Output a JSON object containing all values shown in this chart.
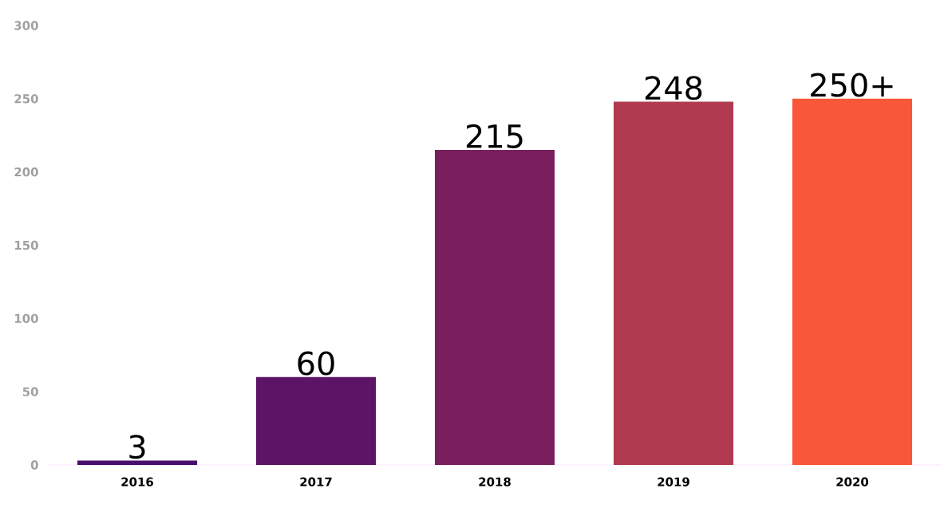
{
  "chart_data": {
    "type": "bar",
    "categories": [
      "2016",
      "2017",
      "2018",
      "2019",
      "2020"
    ],
    "values": [
      3,
      60,
      215,
      248,
      250
    ],
    "value_labels": [
      "3",
      "60",
      "215",
      "248",
      "250+"
    ],
    "colors": [
      "#4a0f6e",
      "#5e1466",
      "#7a1f5e",
      "#b03a50",
      "#f9573a"
    ],
    "ylim": [
      0,
      300
    ],
    "yticks": [
      0,
      50,
      100,
      150,
      200,
      250,
      300
    ],
    "grid": false
  }
}
